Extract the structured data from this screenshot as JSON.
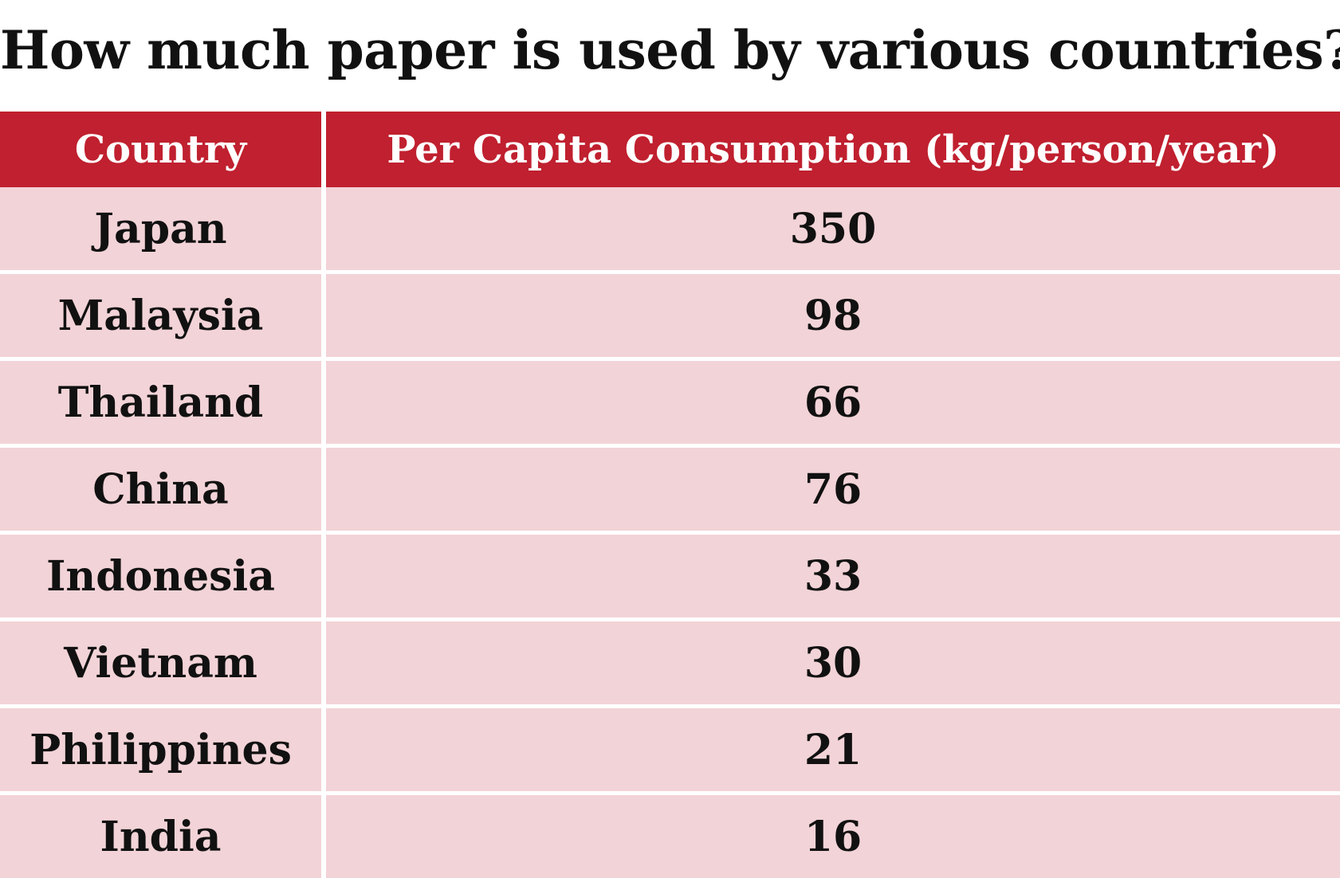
{
  "chart_data": {
    "type": "table",
    "title": "How much paper is used by various countries?",
    "columns": [
      "Country",
      "Per Capita Consumption (kg/person/year)"
    ],
    "rows": [
      {
        "country": "Japan",
        "value": "350"
      },
      {
        "country": "Malaysia",
        "value": "98"
      },
      {
        "country": "Thailand",
        "value": "66"
      },
      {
        "country": "China",
        "value": "76"
      },
      {
        "country": "Indonesia",
        "value": "33"
      },
      {
        "country": "Vietnam",
        "value": "30"
      },
      {
        "country": "Philippines",
        "value": "21"
      },
      {
        "country": "India",
        "value": "16"
      }
    ]
  },
  "colors": {
    "header_bg": "#c0202f",
    "row_bg": "#f2d3d7",
    "text": "#111111",
    "header_text": "#ffffff"
  }
}
